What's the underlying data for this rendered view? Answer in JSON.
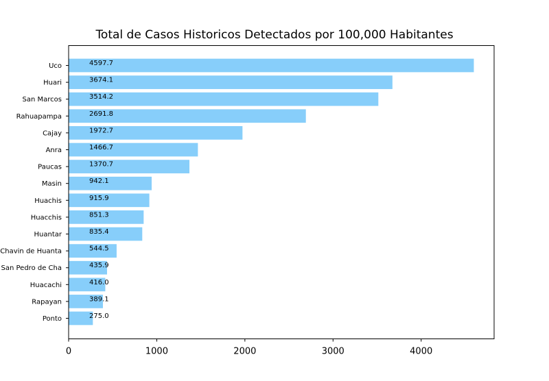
{
  "chart_data": {
    "type": "bar",
    "orientation": "horizontal",
    "title": "Total de Casos Historicos Detectados por 100,000 Habitantes",
    "xlabel": "",
    "ylabel": "",
    "categories": [
      "Uco",
      "Huari",
      "San Marcos",
      "Rahuapampa",
      "Cajay",
      "Anra",
      "Paucas",
      "Masin",
      "Huachis",
      "Huacchis",
      "Huantar",
      "Chavin de Huanta",
      "San Pedro de Cha",
      "Huacachi",
      "Rapayan",
      "Ponto"
    ],
    "values": [
      4597.7,
      3674.1,
      3514.2,
      2691.8,
      1972.7,
      1466.7,
      1370.7,
      942.1,
      915.9,
      851.3,
      835.4,
      544.5,
      435.9,
      416.0,
      389.1,
      275.0
    ],
    "data_labels": [
      "4597.7",
      "3674.1",
      "3514.2",
      "2691.8",
      "1972.7",
      "1466.7",
      "1370.7",
      "942.1",
      "915.9",
      "851.3",
      "835.4",
      "544.5",
      "435.9",
      "416.0",
      "389.1",
      "275.0"
    ],
    "xticks": [
      0,
      1000,
      2000,
      3000,
      4000
    ],
    "xtick_labels": [
      "0",
      "1000",
      "2000",
      "3000",
      "4000"
    ],
    "xlim": [
      0,
      4827.6
    ],
    "bar_color": "#87cefa",
    "grid": false,
    "legend": "none"
  }
}
